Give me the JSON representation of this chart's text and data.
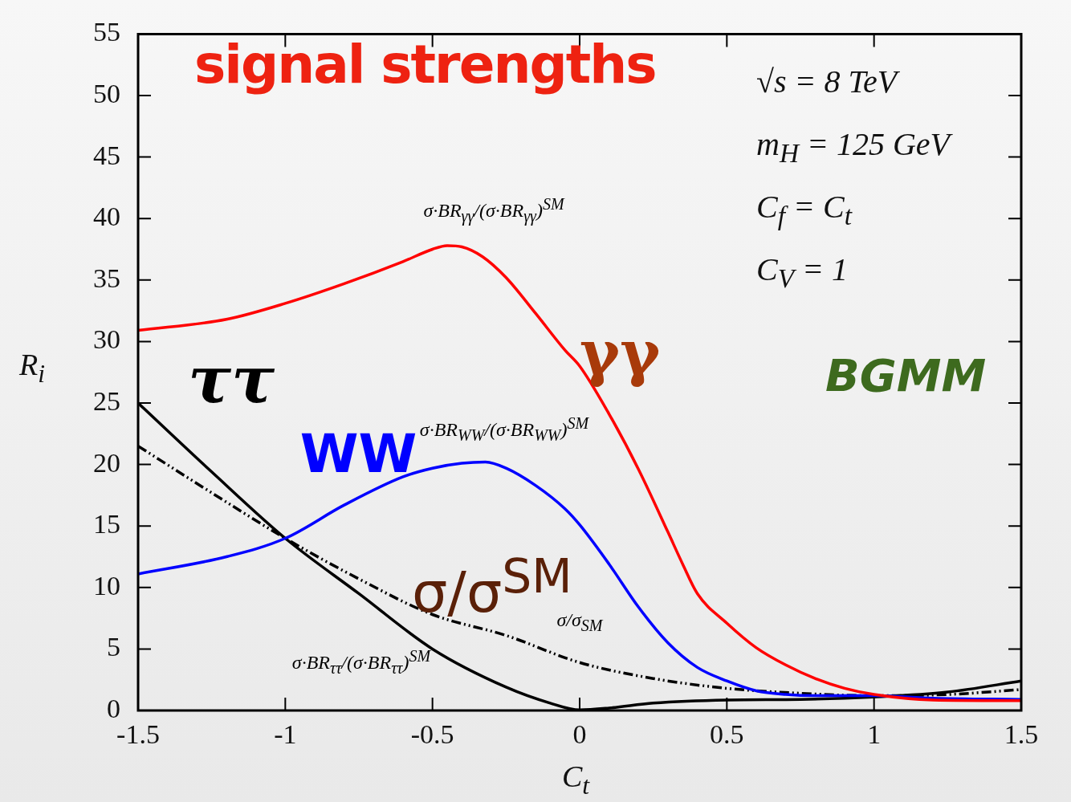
{
  "chart_data": {
    "type": "line",
    "title": "signal strengths",
    "xlabel": "C$_{t}$",
    "ylabel": "R$_{i}$",
    "xlim": [
      -1.5,
      1.5
    ],
    "xticks": [
      -1.5,
      -1,
      -0.5,
      0,
      0.5,
      1,
      1.5
    ],
    "ylim": [
      0,
      55
    ],
    "yticks": [
      0,
      5,
      10,
      15,
      20,
      25,
      30,
      35,
      40,
      45,
      50,
      55
    ],
    "grid": false,
    "marker": "none",
    "series": [
      {
        "name": "γγ",
        "color": "#ff0000",
        "line_style": "solid",
        "x": [
          -1.5,
          -1.2,
          -1,
          -0.8,
          -0.6,
          -0.5,
          -0.45,
          -0.4,
          -0.33,
          -0.25,
          -0.15,
          -0.05,
          0,
          0.1,
          0.2,
          0.3,
          0.35,
          0.4,
          0.5,
          0.6,
          0.7,
          0.8,
          0.9,
          1,
          1.2,
          1.5
        ],
        "values": [
          30.9,
          31.8,
          33.1,
          34.7,
          36.5,
          37.5,
          37.8,
          37.7,
          36.9,
          35.2,
          32.3,
          29.3,
          28,
          24.1,
          19.6,
          14.5,
          11.9,
          9.5,
          7.1,
          5.1,
          3.7,
          2.6,
          1.8,
          1.3,
          0.85,
          0.8
        ]
      },
      {
        "name": "WW",
        "color": "#0000ff",
        "line_style": "solid",
        "x": [
          -1.5,
          -1.2,
          -1,
          -0.8,
          -0.6,
          -0.5,
          -0.4,
          -0.32,
          -0.25,
          -0.15,
          -0.05,
          0,
          0.1,
          0.2,
          0.3,
          0.4,
          0.5,
          0.6,
          0.7,
          0.8,
          1,
          1.2,
          1.5
        ],
        "values": [
          11.1,
          12.5,
          14,
          16.7,
          19,
          19.7,
          20.1,
          20.2,
          19.7,
          18.3,
          16.4,
          15.1,
          11.9,
          8.4,
          5.5,
          3.5,
          2.4,
          1.6,
          1.3,
          1.2,
          1.2,
          1,
          0.9
        ]
      },
      {
        "name": "ττ",
        "color": "#000000",
        "line_style": "solid",
        "x": [
          -1.5,
          -1.25,
          -1,
          -0.75,
          -0.5,
          -0.25,
          -0.1,
          0,
          0.1,
          0.25,
          0.5,
          0.75,
          1,
          1.25,
          1.5
        ],
        "values": [
          25,
          19.4,
          14,
          9.5,
          5,
          1.9,
          0.6,
          0.05,
          0.2,
          0.6,
          0.85,
          0.9,
          1.1,
          1.5,
          2.4
        ]
      },
      {
        "name": "σ/σ$^{SM}$",
        "color": "#000000",
        "line_style": "dashed",
        "x": [
          -1.5,
          -1.25,
          -1,
          -0.75,
          -0.5,
          -0.25,
          0,
          0.25,
          0.5,
          0.75,
          1,
          1.25,
          1.5
        ],
        "values": [
          21.5,
          17.7,
          14,
          10.7,
          7.8,
          6.1,
          3.9,
          2.6,
          1.8,
          1.4,
          1.2,
          1.3,
          1.7
        ]
      }
    ],
    "annotations": [
      "√s = 8 TeV",
      "m$_{H}$ = 125 GeV",
      "C$_{f}$ = C$_{t}$",
      "C$_{V}$ = 1",
      "BGMM",
      "σ·BR$_{γγ}$/(σ·BR$_{γγ}$)$^{SM}$",
      "σ·BR$_{WW}$/(σ·BR$_{WW}$)$^{SM}$",
      "σ/σ$_{SM}$",
      "σ·BR$_{ττ}$/(σ·BR$_{ττ}$)$^{SM}$"
    ]
  }
}
